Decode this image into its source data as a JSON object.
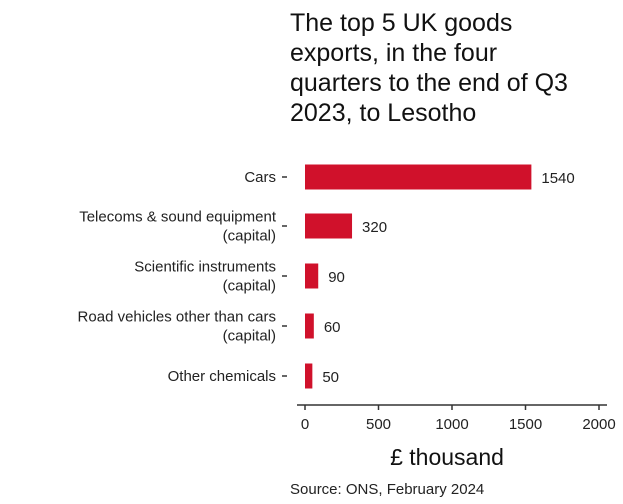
{
  "chart_data": {
    "type": "bar",
    "orientation": "horizontal",
    "title_lines": [
      "The top 5 UK goods",
      "exports, in the four",
      "quarters to the end of Q3",
      "2023, to Lesotho"
    ],
    "categories": [
      [
        "Cars"
      ],
      [
        "Telecoms & sound equipment",
        "(capital)"
      ],
      [
        "Scientific instruments",
        "(capital)"
      ],
      [
        "Road vehicles other than cars",
        "(capital)"
      ],
      [
        "Other chemicals"
      ]
    ],
    "values": [
      1540,
      320,
      90,
      60,
      50
    ],
    "data_labels": [
      "1540",
      "320",
      "90",
      "60",
      "50"
    ],
    "xlabel": "£ thousand",
    "xlim": [
      0,
      2000
    ],
    "xticks": [
      "0",
      "500",
      "1000",
      "1500",
      "2000"
    ],
    "bar_color": "#d0112b",
    "grid": false,
    "source": "Source: ONS, February 2024"
  }
}
